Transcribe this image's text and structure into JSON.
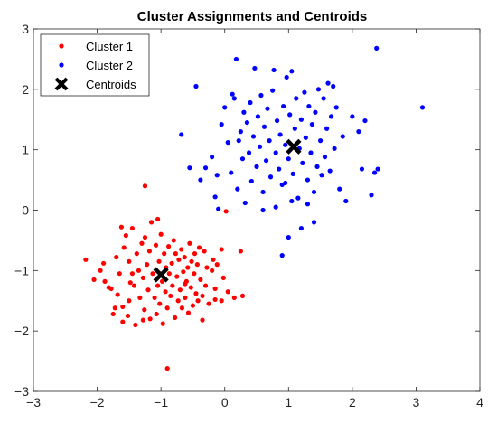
{
  "chart_data": {
    "type": "scatter",
    "title": "Cluster Assignments and Centroids",
    "xlabel": "",
    "ylabel": "",
    "xlim": [
      -3,
      4
    ],
    "ylim": [
      -3,
      3
    ],
    "xticks": [
      -3,
      -2,
      -1,
      0,
      1,
      2,
      3,
      4
    ],
    "yticks": [
      -3,
      -2,
      -1,
      0,
      1,
      2,
      3
    ],
    "grid": false,
    "legend_position": "top-left",
    "series": [
      {
        "name": "Cluster 1",
        "color": "#ff0000",
        "marker": "dot",
        "points": [
          [
            -2.18,
            -0.82
          ],
          [
            -2.05,
            -1.15
          ],
          [
            -1.95,
            -1.0
          ],
          [
            -1.88,
            -1.18
          ],
          [
            -1.82,
            -1.28
          ],
          [
            -1.78,
            -1.3
          ],
          [
            -1.75,
            -1.72
          ],
          [
            -1.72,
            -1.62
          ],
          [
            -1.7,
            -0.78
          ],
          [
            -1.68,
            -1.4
          ],
          [
            -1.65,
            -1.05
          ],
          [
            -1.62,
            -0.28
          ],
          [
            -1.6,
            -1.6
          ],
          [
            -1.58,
            -0.62
          ],
          [
            -1.55,
            -0.42
          ],
          [
            -1.52,
            -1.75
          ],
          [
            -1.5,
            -0.85
          ],
          [
            -1.5,
            -1.5
          ],
          [
            -1.48,
            -1.2
          ],
          [
            -1.45,
            -0.3
          ],
          [
            -1.42,
            -1.25
          ],
          [
            -1.4,
            -1.9
          ],
          [
            -1.38,
            -0.72
          ],
          [
            -1.35,
            -1.0
          ],
          [
            -1.33,
            -1.45
          ],
          [
            -1.3,
            -0.55
          ],
          [
            -1.28,
            -1.12
          ],
          [
            -1.26,
            -1.65
          ],
          [
            -1.25,
            -0.45
          ],
          [
            -1.22,
            -0.9
          ],
          [
            -1.2,
            -1.32
          ],
          [
            -1.18,
            -0.68
          ],
          [
            -1.17,
            -1.8
          ],
          [
            -1.15,
            -0.2
          ],
          [
            -1.13,
            -1.05
          ],
          [
            -1.1,
            -1.45
          ],
          [
            -1.08,
            -0.58
          ],
          [
            -1.07,
            -1.72
          ],
          [
            -1.05,
            -1.25
          ],
          [
            -1.03,
            -0.85
          ],
          [
            -1.02,
            -1.55
          ],
          [
            -1.0,
            -0.4
          ],
          [
            -0.98,
            -1.18
          ],
          [
            -0.97,
            -1.88
          ],
          [
            -0.95,
            -0.72
          ],
          [
            -0.93,
            -1.35
          ],
          [
            -0.92,
            -0.95
          ],
          [
            -0.9,
            -1.62
          ],
          [
            -0.88,
            -0.6
          ],
          [
            -0.87,
            -1.05
          ],
          [
            -0.85,
            -1.42
          ],
          [
            -0.83,
            -0.88
          ],
          [
            -0.82,
            -1.25
          ],
          [
            -0.8,
            -0.5
          ],
          [
            -0.78,
            -1.78
          ],
          [
            -0.77,
            -0.72
          ],
          [
            -0.75,
            -1.1
          ],
          [
            -0.73,
            -1.5
          ],
          [
            -0.72,
            -0.82
          ],
          [
            -0.7,
            -1.32
          ],
          [
            -0.68,
            -0.65
          ],
          [
            -0.67,
            -1.62
          ],
          [
            -0.65,
            -1.02
          ],
          [
            -0.63,
            -0.78
          ],
          [
            -0.62,
            -1.45
          ],
          [
            -0.6,
            -1.18
          ],
          [
            -0.58,
            -0.95
          ],
          [
            -0.57,
            -1.7
          ],
          [
            -0.55,
            -0.55
          ],
          [
            -0.53,
            -1.28
          ],
          [
            -0.52,
            -0.85
          ],
          [
            -0.5,
            -1.58
          ],
          [
            -0.48,
            -1.05
          ],
          [
            -0.47,
            -0.72
          ],
          [
            -0.45,
            -1.38
          ],
          [
            -0.43,
            -0.9
          ],
          [
            -0.42,
            -1.5
          ],
          [
            -0.4,
            -0.62
          ],
          [
            -0.38,
            -1.15
          ],
          [
            -0.35,
            -1.42
          ],
          [
            -0.32,
            -0.68
          ],
          [
            -0.3,
            -1.25
          ],
          [
            -0.28,
            -0.95
          ],
          [
            -0.25,
            -1.55
          ],
          [
            -0.2,
            -1.0
          ],
          [
            -0.18,
            -0.82
          ],
          [
            -0.15,
            -1.3
          ],
          [
            -0.12,
            -0.9
          ],
          [
            -0.05,
            -0.65
          ],
          [
            -0.02,
            -1.12
          ],
          [
            0.02,
            -0.02
          ],
          [
            0.05,
            -1.35
          ],
          [
            0.15,
            -1.45
          ],
          [
            0.25,
            -0.68
          ],
          [
            0.28,
            -1.42
          ],
          [
            -0.05,
            -1.5
          ],
          [
            -1.9,
            -0.88
          ],
          [
            -1.6,
            -1.85
          ],
          [
            -1.28,
            -1.82
          ],
          [
            -0.9,
            -2.62
          ],
          [
            -1.05,
            -0.15
          ],
          [
            -1.25,
            0.4
          ],
          [
            -0.35,
            -1.82
          ],
          [
            -0.62,
            -1.22
          ],
          [
            -0.15,
            -1.48
          ],
          [
            -1.45,
            -1.05
          ]
        ]
      },
      {
        "name": "Cluster 2",
        "color": "#0000ff",
        "marker": "dot",
        "points": [
          [
            -0.68,
            1.25
          ],
          [
            -0.55,
            0.7
          ],
          [
            -0.45,
            2.05
          ],
          [
            -0.38,
            0.5
          ],
          [
            -0.2,
            0.88
          ],
          [
            -0.15,
            0.22
          ],
          [
            -0.12,
            0.58
          ],
          [
            -0.05,
            1.42
          ],
          [
            0.0,
            1.7
          ],
          [
            0.05,
            1.12
          ],
          [
            0.1,
            0.62
          ],
          [
            0.12,
            1.92
          ],
          [
            0.15,
            1.85
          ],
          [
            0.18,
            2.5
          ],
          [
            0.2,
            0.35
          ],
          [
            0.22,
            1.15
          ],
          [
            0.25,
            1.3
          ],
          [
            0.28,
            0.85
          ],
          [
            0.3,
            1.62
          ],
          [
            0.32,
            0.12
          ],
          [
            0.35,
            1.45
          ],
          [
            0.38,
            0.95
          ],
          [
            0.4,
            1.78
          ],
          [
            0.42,
            0.48
          ],
          [
            0.45,
            1.22
          ],
          [
            0.47,
            2.35
          ],
          [
            0.5,
            0.72
          ],
          [
            0.52,
            1.55
          ],
          [
            0.55,
            1.05
          ],
          [
            0.57,
            1.9
          ],
          [
            0.6,
            0.3
          ],
          [
            0.62,
            1.38
          ],
          [
            0.65,
            0.82
          ],
          [
            0.67,
            1.68
          ],
          [
            0.7,
            1.15
          ],
          [
            0.72,
            0.55
          ],
          [
            0.75,
            1.98
          ],
          [
            0.77,
            2.32
          ],
          [
            0.8,
            0.95
          ],
          [
            0.82,
            1.48
          ],
          [
            0.85,
            0.68
          ],
          [
            0.87,
            1.25
          ],
          [
            0.9,
            0.42
          ],
          [
            0.92,
            1.72
          ],
          [
            0.95,
            1.08
          ],
          [
            0.97,
            2.2
          ],
          [
            1.0,
            0.85
          ],
          [
            1.02,
            1.58
          ],
          [
            1.05,
            2.3
          ],
          [
            1.07,
            0.6
          ],
          [
            1.1,
            1.35
          ],
          [
            1.12,
            1.85
          ],
          [
            1.15,
            0.2
          ],
          [
            1.17,
            1.02
          ],
          [
            1.2,
            1.5
          ],
          [
            1.22,
            0.78
          ],
          [
            1.25,
            1.95
          ],
          [
            1.27,
            1.2
          ],
          [
            1.3,
            0.5
          ],
          [
            1.32,
            1.72
          ],
          [
            1.35,
            0.95
          ],
          [
            1.37,
            1.42
          ],
          [
            1.4,
            0.3
          ],
          [
            1.42,
            1.62
          ],
          [
            1.45,
            0.72
          ],
          [
            1.47,
            2.0
          ],
          [
            1.5,
            1.15
          ],
          [
            1.52,
            0.58
          ],
          [
            1.55,
            1.85
          ],
          [
            1.57,
            0.88
          ],
          [
            1.6,
            1.35
          ],
          [
            1.62,
            2.1
          ],
          [
            1.65,
            0.65
          ],
          [
            1.67,
            1.55
          ],
          [
            1.7,
            2.05
          ],
          [
            1.72,
            1.02
          ],
          [
            1.75,
            1.7
          ],
          [
            1.8,
            0.35
          ],
          [
            1.85,
            1.22
          ],
          [
            1.9,
            0.15
          ],
          [
            2.0,
            1.55
          ],
          [
            2.1,
            1.3
          ],
          [
            2.15,
            0.68
          ],
          [
            2.2,
            1.48
          ],
          [
            2.3,
            0.25
          ],
          [
            2.35,
            0.62
          ],
          [
            2.38,
            2.68
          ],
          [
            2.4,
            0.68
          ],
          [
            3.1,
            1.7
          ],
          [
            0.9,
            -0.75
          ],
          [
            1.0,
            -0.45
          ],
          [
            1.2,
            -0.3
          ],
          [
            0.8,
            0.05
          ],
          [
            1.05,
            0.15
          ],
          [
            0.6,
            0.0
          ],
          [
            1.4,
            -0.2
          ],
          [
            0.95,
            0.45
          ],
          [
            1.3,
            0.1
          ],
          [
            -0.3,
            0.7
          ],
          [
            -0.1,
            0.02
          ]
        ]
      },
      {
        "name": "Centroids",
        "color": "#000000",
        "marker": "x",
        "points": [
          [
            -1.0,
            -1.07
          ],
          [
            1.08,
            1.05
          ]
        ]
      }
    ]
  }
}
